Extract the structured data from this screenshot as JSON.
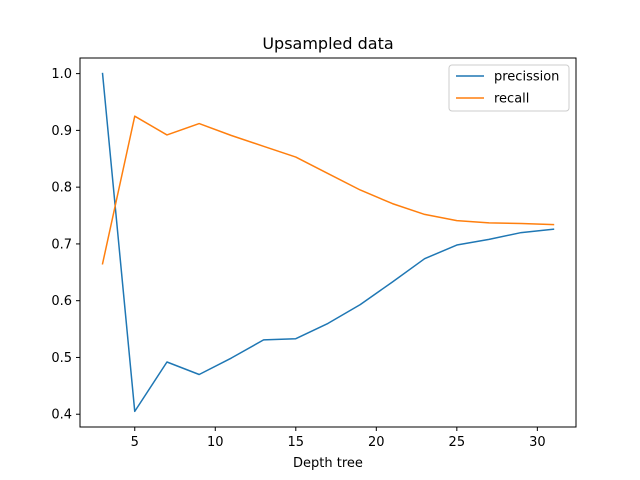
{
  "chart_data": {
    "type": "line",
    "title": "Upsampled data",
    "xlabel": "Depth tree",
    "ylabel": "",
    "x": [
      3,
      5,
      7,
      9,
      11,
      13,
      15,
      17,
      19,
      21,
      23,
      25,
      27,
      29,
      31
    ],
    "series": [
      {
        "name": "precission",
        "color": "#1f77b4",
        "values": [
          1.0,
          0.405,
          0.492,
          0.47,
          0.499,
          0.531,
          0.533,
          0.56,
          0.593,
          0.633,
          0.674,
          0.698,
          0.708,
          0.72,
          0.726
        ]
      },
      {
        "name": "recall",
        "color": "#ff7f0e",
        "values": [
          0.665,
          0.925,
          0.892,
          0.912,
          0.891,
          0.872,
          0.853,
          0.824,
          0.795,
          0.771,
          0.752,
          0.741,
          0.737,
          0.736,
          0.734
        ]
      }
    ],
    "xlim": [
      1.6,
      32.4
    ],
    "ylim": [
      0.3775,
      1.0275
    ],
    "xticks": [
      5,
      10,
      15,
      20,
      25,
      30
    ],
    "xtick_labels": [
      "5",
      "10",
      "15",
      "20",
      "25",
      "30"
    ],
    "yticks": [
      0.4,
      0.5,
      0.6,
      0.7,
      0.8,
      0.9,
      1.0
    ],
    "ytick_labels": [
      "0.4",
      "0.5",
      "0.6",
      "0.7",
      "0.8",
      "0.9",
      "1.0"
    ],
    "grid": false,
    "legend_position": "top-right"
  }
}
